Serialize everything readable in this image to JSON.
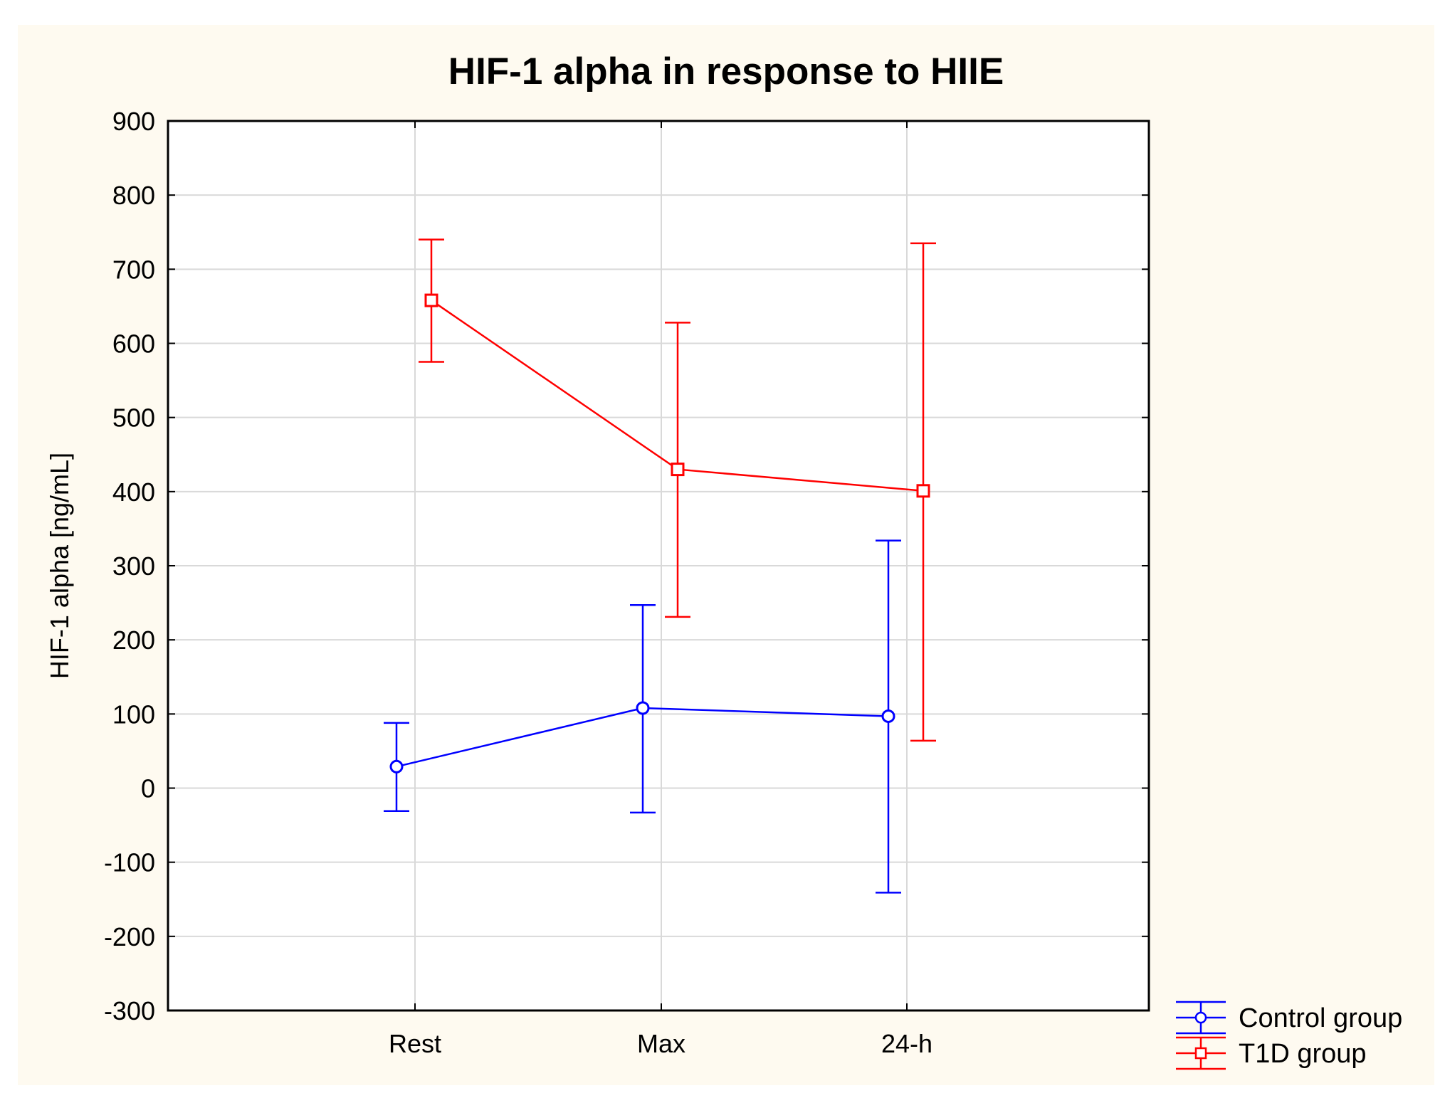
{
  "chart_data": {
    "type": "line",
    "title": "HIF-1 alpha in response to HIIE",
    "xlabel": "",
    "ylabel": "HIF-1 alpha [ng/mL]",
    "categories": [
      "Rest",
      "Max",
      "24-h"
    ],
    "ylim": [
      -300,
      900
    ],
    "yticks": [
      -300,
      -200,
      -100,
      0,
      100,
      200,
      300,
      400,
      500,
      600,
      700,
      800,
      900
    ],
    "grid": true,
    "legend_position": "bottom-right outside",
    "series": [
      {
        "name": "Control group",
        "color": "#0000ff",
        "marker": "circle",
        "values": [
          29,
          108,
          97
        ],
        "error_low": [
          -31,
          -33,
          -141
        ],
        "error_high": [
          88,
          247,
          334
        ]
      },
      {
        "name": "T1D group",
        "color": "#ff0000",
        "marker": "square",
        "values": [
          658,
          430,
          401
        ],
        "error_low": [
          575,
          231,
          64
        ],
        "error_high": [
          740,
          628,
          735
        ]
      }
    ]
  },
  "colors": {
    "background": "#fefaf0",
    "plot_background": "#ffffff",
    "grid": "#d9d9d9",
    "axis": "#000000"
  }
}
